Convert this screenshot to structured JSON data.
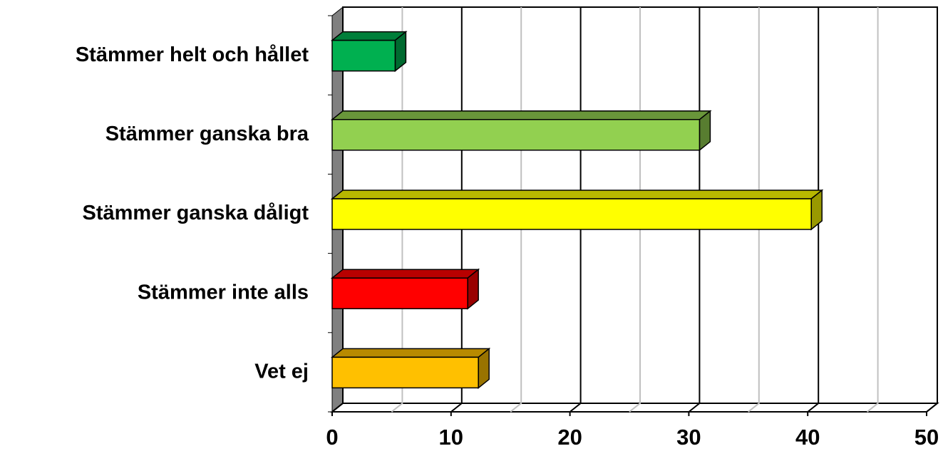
{
  "chart_data": {
    "type": "bar3d_horizontal",
    "categories": [
      "Stämmer helt och hållet",
      "Stämmer ganska bra",
      "Stämmer ganska dåligt",
      "Stämmer inte alls",
      "Vet ej"
    ],
    "values": [
      5.3,
      30.9,
      40.3,
      11.4,
      12.3
    ],
    "colors": [
      "#00b050",
      "#92d050",
      "#ffff00",
      "#ff0000",
      "#ffc000"
    ],
    "xlim": [
      0,
      50
    ],
    "xticks": [
      0,
      10,
      20,
      30,
      40,
      50
    ],
    "minor_xticks": [
      5,
      15,
      25,
      35,
      45
    ],
    "grid": true
  }
}
